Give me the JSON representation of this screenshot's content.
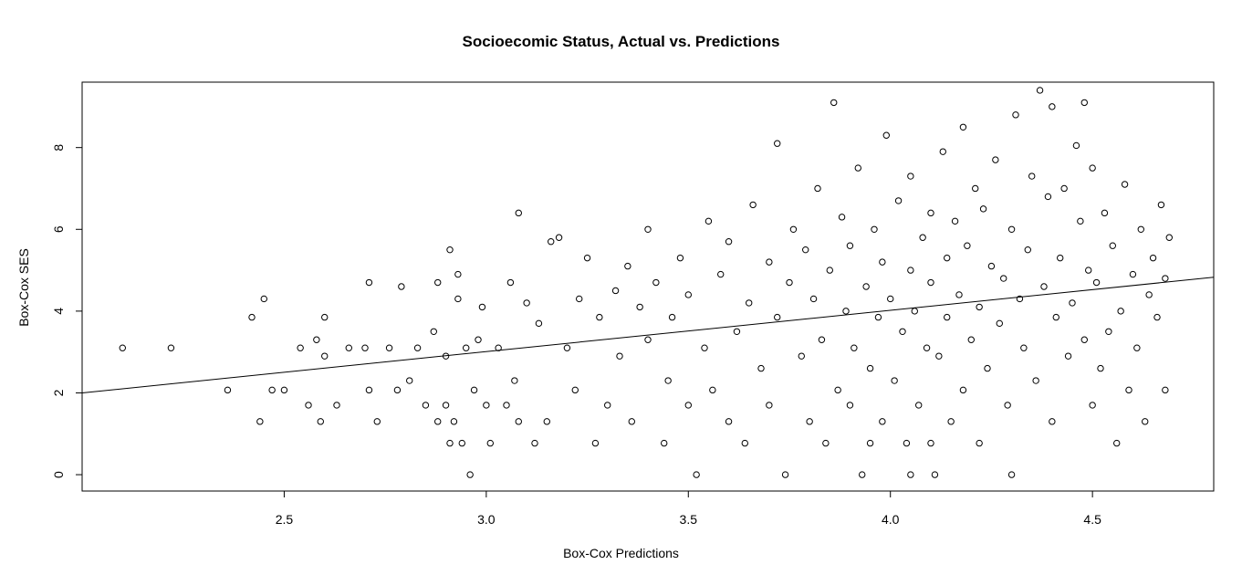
{
  "chart_data": {
    "type": "scatter",
    "title": "Socioecomic Status, Actual vs. Predictions",
    "xlabel": "Box-Cox Predictions",
    "ylabel": "Box-Cox SES",
    "xlim": [
      2.0,
      4.8
    ],
    "ylim": [
      -0.4,
      9.6
    ],
    "xticks": [
      2.5,
      3.0,
      3.5,
      4.0,
      4.5
    ],
    "yticks": [
      0,
      2,
      4,
      6,
      8
    ],
    "grid": false,
    "legend": "none",
    "marker": "open-circle",
    "regression_line": {
      "intercept": -0.02,
      "slope": 1.01
    },
    "points": [
      [
        2.1,
        3.1
      ],
      [
        2.22,
        3.1
      ],
      [
        2.36,
        2.07
      ],
      [
        2.42,
        3.85
      ],
      [
        2.44,
        1.3
      ],
      [
        2.45,
        4.3
      ],
      [
        2.47,
        2.07
      ],
      [
        2.5,
        2.07
      ],
      [
        2.54,
        3.1
      ],
      [
        2.56,
        1.7
      ],
      [
        2.58,
        3.3
      ],
      [
        2.59,
        1.3
      ],
      [
        2.6,
        2.9
      ],
      [
        2.6,
        3.85
      ],
      [
        2.63,
        1.7
      ],
      [
        2.66,
        3.1
      ],
      [
        2.7,
        3.1
      ],
      [
        2.71,
        2.07
      ],
      [
        2.71,
        4.7
      ],
      [
        2.73,
        1.3
      ],
      [
        2.76,
        3.1
      ],
      [
        2.78,
        2.07
      ],
      [
        2.79,
        4.6
      ],
      [
        2.81,
        2.3
      ],
      [
        2.83,
        3.1
      ],
      [
        2.85,
        1.7
      ],
      [
        2.87,
        3.5
      ],
      [
        2.88,
        1.3
      ],
      [
        2.88,
        4.7
      ],
      [
        2.9,
        1.7
      ],
      [
        2.9,
        2.9
      ],
      [
        2.91,
        5.5
      ],
      [
        2.91,
        0.77
      ],
      [
        2.92,
        1.3
      ],
      [
        2.93,
        4.3
      ],
      [
        2.93,
        4.9
      ],
      [
        2.94,
        0.77
      ],
      [
        2.95,
        3.1
      ],
      [
        2.96,
        0.0
      ],
      [
        2.97,
        2.07
      ],
      [
        2.98,
        3.3
      ],
      [
        2.99,
        4.1
      ],
      [
        3.0,
        1.7
      ],
      [
        3.01,
        0.77
      ],
      [
        3.03,
        3.1
      ],
      [
        3.05,
        1.7
      ],
      [
        3.06,
        4.7
      ],
      [
        3.07,
        2.3
      ],
      [
        3.08,
        1.3
      ],
      [
        3.08,
        6.4
      ],
      [
        3.1,
        4.2
      ],
      [
        3.12,
        0.77
      ],
      [
        3.13,
        3.7
      ],
      [
        3.15,
        1.3
      ],
      [
        3.16,
        5.7
      ],
      [
        3.18,
        5.8
      ],
      [
        3.2,
        3.1
      ],
      [
        3.22,
        2.07
      ],
      [
        3.23,
        4.3
      ],
      [
        3.25,
        5.3
      ],
      [
        3.27,
        0.77
      ],
      [
        3.28,
        3.85
      ],
      [
        3.3,
        1.7
      ],
      [
        3.32,
        4.5
      ],
      [
        3.33,
        2.9
      ],
      [
        3.35,
        5.1
      ],
      [
        3.36,
        1.3
      ],
      [
        3.38,
        4.1
      ],
      [
        3.4,
        3.3
      ],
      [
        3.4,
        6.0
      ],
      [
        3.42,
        4.7
      ],
      [
        3.44,
        0.77
      ],
      [
        3.45,
        2.3
      ],
      [
        3.46,
        3.85
      ],
      [
        3.48,
        5.3
      ],
      [
        3.5,
        4.4
      ],
      [
        3.5,
        1.7
      ],
      [
        3.52,
        0.0
      ],
      [
        3.54,
        3.1
      ],
      [
        3.55,
        6.2
      ],
      [
        3.56,
        2.07
      ],
      [
        3.58,
        4.9
      ],
      [
        3.6,
        5.7
      ],
      [
        3.6,
        1.3
      ],
      [
        3.62,
        3.5
      ],
      [
        3.64,
        0.77
      ],
      [
        3.65,
        4.2
      ],
      [
        3.66,
        6.6
      ],
      [
        3.68,
        2.6
      ],
      [
        3.7,
        5.2
      ],
      [
        3.7,
        1.7
      ],
      [
        3.72,
        3.85
      ],
      [
        3.72,
        8.1
      ],
      [
        3.74,
        0.0
      ],
      [
        3.75,
        4.7
      ],
      [
        3.76,
        6.0
      ],
      [
        3.78,
        2.9
      ],
      [
        3.79,
        5.5
      ],
      [
        3.8,
        1.3
      ],
      [
        3.81,
        4.3
      ],
      [
        3.82,
        7.0
      ],
      [
        3.83,
        3.3
      ],
      [
        3.84,
        0.77
      ],
      [
        3.85,
        5.0
      ],
      [
        3.86,
        9.1
      ],
      [
        3.87,
        2.07
      ],
      [
        3.88,
        6.3
      ],
      [
        3.89,
        4.0
      ],
      [
        3.9,
        1.7
      ],
      [
        3.9,
        5.6
      ],
      [
        3.91,
        3.1
      ],
      [
        3.92,
        7.5
      ],
      [
        3.93,
        0.0
      ],
      [
        3.94,
        4.6
      ],
      [
        3.95,
        2.6
      ],
      [
        3.96,
        6.0
      ],
      [
        3.97,
        3.85
      ],
      [
        3.98,
        5.2
      ],
      [
        3.98,
        1.3
      ],
      [
        3.99,
        8.3
      ],
      [
        4.0,
        4.3
      ],
      [
        4.01,
        2.3
      ],
      [
        4.02,
        6.7
      ],
      [
        4.03,
        3.5
      ],
      [
        4.04,
        0.77
      ],
      [
        4.05,
        5.0
      ],
      [
        4.05,
        7.3
      ],
      [
        4.06,
        4.0
      ],
      [
        4.07,
        1.7
      ],
      [
        4.08,
        5.8
      ],
      [
        4.09,
        3.1
      ],
      [
        4.1,
        6.4
      ],
      [
        4.1,
        4.7
      ],
      [
        4.11,
        0.0
      ],
      [
        4.12,
        2.9
      ],
      [
        4.13,
        7.9
      ],
      [
        4.14,
        5.3
      ],
      [
        4.14,
        3.85
      ],
      [
        4.15,
        1.3
      ],
      [
        4.16,
        6.2
      ],
      [
        4.17,
        4.4
      ],
      [
        4.18,
        2.07
      ],
      [
        4.18,
        8.5
      ],
      [
        4.19,
        5.6
      ],
      [
        4.2,
        3.3
      ],
      [
        4.21,
        7.0
      ],
      [
        4.22,
        4.1
      ],
      [
        4.22,
        0.77
      ],
      [
        4.23,
        6.5
      ],
      [
        4.24,
        2.6
      ],
      [
        4.25,
        5.1
      ],
      [
        4.26,
        7.7
      ],
      [
        4.27,
        3.7
      ],
      [
        4.28,
        4.8
      ],
      [
        4.29,
        1.7
      ],
      [
        4.3,
        6.0
      ],
      [
        4.31,
        8.8
      ],
      [
        4.32,
        4.3
      ],
      [
        4.33,
        3.1
      ],
      [
        4.34,
        5.5
      ],
      [
        4.35,
        7.3
      ],
      [
        4.36,
        2.3
      ],
      [
        4.37,
        9.4
      ],
      [
        4.38,
        4.6
      ],
      [
        4.39,
        6.8
      ],
      [
        4.4,
        1.3
      ],
      [
        4.4,
        9.0
      ],
      [
        4.41,
        3.85
      ],
      [
        4.42,
        5.3
      ],
      [
        4.43,
        7.0
      ],
      [
        4.44,
        2.9
      ],
      [
        4.45,
        4.2
      ],
      [
        4.46,
        8.05
      ],
      [
        4.47,
        6.2
      ],
      [
        4.48,
        3.3
      ],
      [
        4.49,
        5.0
      ],
      [
        4.5,
        1.7
      ],
      [
        4.5,
        7.5
      ],
      [
        4.51,
        4.7
      ],
      [
        4.52,
        2.6
      ],
      [
        4.53,
        6.4
      ],
      [
        4.54,
        3.5
      ],
      [
        4.55,
        5.6
      ],
      [
        4.56,
        0.77
      ],
      [
        4.57,
        4.0
      ],
      [
        4.58,
        7.1
      ],
      [
        4.59,
        2.07
      ],
      [
        4.6,
        4.9
      ],
      [
        4.61,
        3.1
      ],
      [
        4.62,
        6.0
      ],
      [
        4.63,
        1.3
      ],
      [
        4.64,
        4.4
      ],
      [
        4.65,
        5.3
      ],
      [
        4.66,
        3.85
      ],
      [
        4.67,
        6.6
      ],
      [
        4.68,
        4.8
      ],
      [
        4.68,
        2.07
      ],
      [
        4.69,
        5.8
      ],
      [
        4.48,
        9.1
      ],
      [
        4.1,
        0.77
      ],
      [
        4.3,
        0.0
      ],
      [
        4.05,
        0.0
      ],
      [
        3.95,
        0.77
      ]
    ]
  }
}
